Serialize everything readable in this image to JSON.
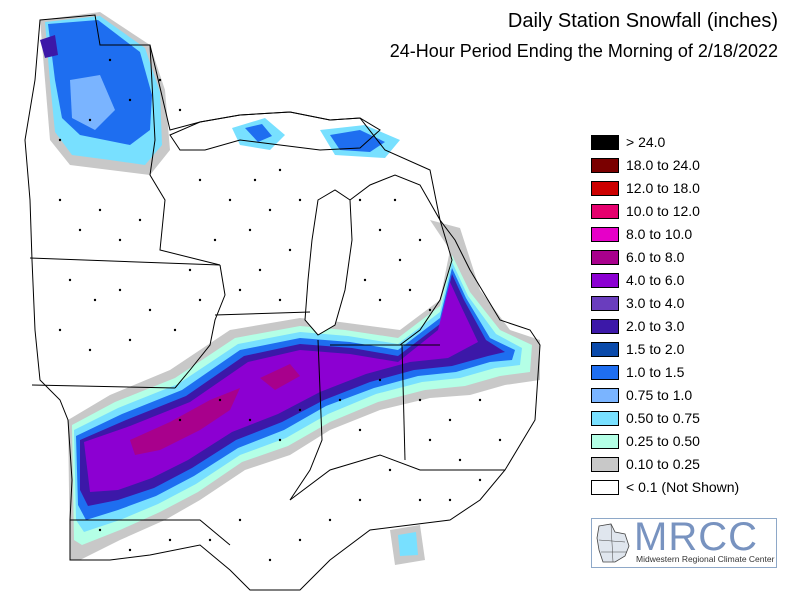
{
  "title": "Daily Station Snowfall (inches)",
  "subtitle": "24-Hour Period Ending the Morning of 2/18/2022",
  "legend": [
    {
      "label": "> 24.0",
      "color": "#000000"
    },
    {
      "label": "18.0 to 24.0",
      "color": "#7a0000"
    },
    {
      "label": "12.0 to 18.0",
      "color": "#cc0000"
    },
    {
      "label": "10.0 to 12.0",
      "color": "#e6006e"
    },
    {
      "label": "8.0 to 10.0",
      "color": "#e600c8"
    },
    {
      "label": "6.0 to 8.0",
      "color": "#a8008c"
    },
    {
      "label": "4.0 to 6.0",
      "color": "#8c00d2"
    },
    {
      "label": "3.0 to 4.0",
      "color": "#6a3dbe"
    },
    {
      "label": "2.0 to 3.0",
      "color": "#3c18a8"
    },
    {
      "label": "1.5 to 2.0",
      "color": "#0a4aaa"
    },
    {
      "label": "1.0 to 1.5",
      "color": "#1e6ef0"
    },
    {
      "label": "0.75 to 1.0",
      "color": "#7ab4ff"
    },
    {
      "label": "0.50 to 0.75",
      "color": "#78e0ff"
    },
    {
      "label": "0.25 to 0.50",
      "color": "#b4ffe6"
    },
    {
      "label": "0.10 to 0.25",
      "color": "#c8c8c8"
    },
    {
      "label": "< 0.1 (Not Shown)",
      "color": "#ffffff"
    }
  ],
  "logo": {
    "name": "MRCC",
    "subtitle": "Midwestern Regional Climate Center"
  }
}
